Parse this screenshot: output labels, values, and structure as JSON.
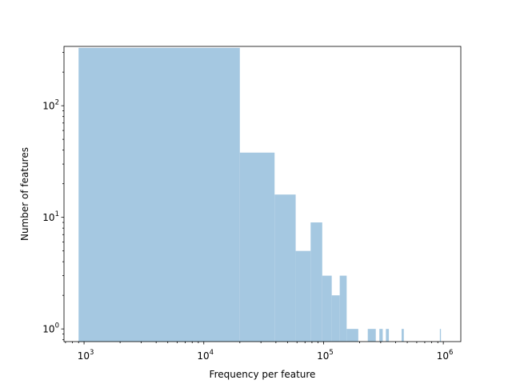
{
  "chart_data": {
    "type": "bar",
    "title": "",
    "xlabel": "Frequency per feature",
    "ylabel": "Number of features",
    "x_scale": "log",
    "y_scale": "log",
    "xlim": [
      680,
      1400000
    ],
    "ylim": [
      0.77,
      340
    ],
    "bar_color": "#a5c8e1",
    "grid": false,
    "x_ticks": [
      {
        "base": "10",
        "exp": "3",
        "value": 1000
      },
      {
        "base": "10",
        "exp": "4",
        "value": 10000
      },
      {
        "base": "10",
        "exp": "5",
        "value": 100000
      },
      {
        "base": "10",
        "exp": "6",
        "value": 1000000
      }
    ],
    "y_ticks": [
      {
        "base": "10",
        "exp": "0",
        "value": 1
      },
      {
        "base": "10",
        "exp": "1",
        "value": 10
      },
      {
        "base": "10",
        "exp": "2",
        "value": 100
      }
    ],
    "bins": [
      {
        "x0": 900,
        "x1": 20000,
        "count": 330
      },
      {
        "x0": 20000,
        "x1": 39000,
        "count": 38
      },
      {
        "x0": 39000,
        "x1": 58500,
        "count": 16
      },
      {
        "x0": 58500,
        "x1": 78000,
        "count": 5
      },
      {
        "x0": 78000,
        "x1": 97500,
        "count": 9
      },
      {
        "x0": 97500,
        "x1": 117000,
        "count": 3
      },
      {
        "x0": 117000,
        "x1": 136500,
        "count": 2
      },
      {
        "x0": 136500,
        "x1": 156000,
        "count": 3
      },
      {
        "x0": 156000,
        "x1": 195000,
        "count": 1
      },
      {
        "x0": 234000,
        "x1": 273000,
        "count": 1
      },
      {
        "x0": 292500,
        "x1": 312000,
        "count": 1
      },
      {
        "x0": 331500,
        "x1": 351000,
        "count": 1
      },
      {
        "x0": 448500,
        "x1": 468000,
        "count": 1
      },
      {
        "x0": 936000,
        "x1": 955500,
        "count": 1
      }
    ]
  }
}
